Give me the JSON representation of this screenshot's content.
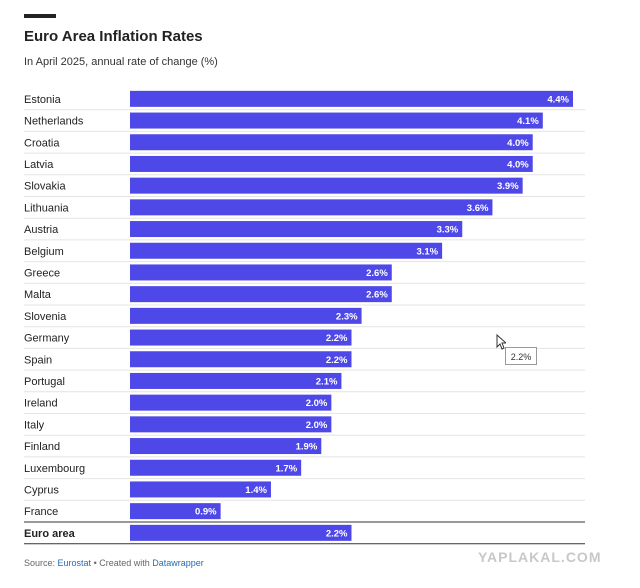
{
  "header": {
    "title": "Euro Area Inflation Rates",
    "subtitle": "In April 2025, annual rate of change (%)"
  },
  "chart_data": {
    "type": "bar",
    "orientation": "horizontal",
    "title": "Euro Area Inflation Rates",
    "subtitle": "In April 2025, annual rate of change (%)",
    "xlim": [
      0,
      4.4
    ],
    "bar_color": "#4f48e8",
    "value_suffix": "%",
    "categories": [
      "Estonia",
      "Netherlands",
      "Croatia",
      "Latvia",
      "Slovakia",
      "Lithuania",
      "Austria",
      "Belgium",
      "Greece",
      "Malta",
      "Slovenia",
      "Germany",
      "Spain",
      "Portugal",
      "Ireland",
      "Italy",
      "Finland",
      "Luxembourg",
      "Cyprus",
      "France"
    ],
    "values": [
      4.4,
      4.1,
      4.0,
      4.0,
      3.9,
      3.6,
      3.3,
      3.1,
      2.6,
      2.6,
      2.3,
      2.2,
      2.2,
      2.1,
      2.0,
      2.0,
      1.9,
      1.7,
      1.4,
      0.9
    ],
    "total": {
      "label": "Euro area",
      "value": 2.2
    }
  },
  "tooltip": {
    "text": "2.2%"
  },
  "footer": {
    "source_prefix": "Source: ",
    "source_link": "Eurostat",
    "separator": " • Created with ",
    "tool_link": "Datawrapper"
  },
  "watermark": "YAPLAKAL.COM"
}
